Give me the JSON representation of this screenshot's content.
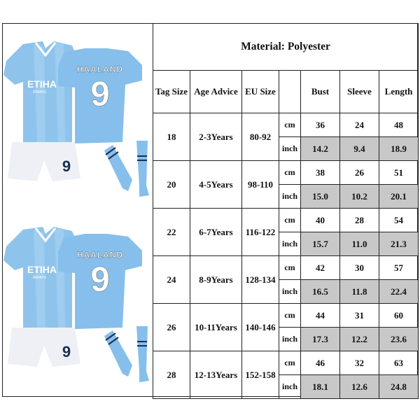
{
  "product": {
    "jersey_name": "HAALAND",
    "jersey_number": "9",
    "sponsor_main": "ETIHA",
    "sponsor_sub": "IRWAYS",
    "colors": {
      "jersey": "#8ec3ec",
      "jersey_dark": "#6aaee4",
      "shorts": "#eef0f6",
      "number_dark": "#1c2e52"
    }
  },
  "table": {
    "title": "Material: Polyester",
    "headers": [
      "Tag Size",
      "Age Advice",
      "EU Size",
      "",
      "Bust",
      "Sleeve",
      "Length"
    ],
    "units": [
      "cm",
      "inch"
    ],
    "highlight_color": "#c8c8c8",
    "rows": [
      {
        "tag": "18",
        "age": "2-3Years",
        "eu": "80-92",
        "cm": [
          "36",
          "24",
          "48"
        ],
        "inch": [
          "14.2",
          "9.4",
          "18.9"
        ]
      },
      {
        "tag": "20",
        "age": "4-5Years",
        "eu": "98-110",
        "cm": [
          "38",
          "26",
          "51"
        ],
        "inch": [
          "15.0",
          "10.2",
          "20.1"
        ]
      },
      {
        "tag": "22",
        "age": "6-7Years",
        "eu": "116-122",
        "cm": [
          "40",
          "28",
          "54"
        ],
        "inch": [
          "15.7",
          "11.0",
          "21.3"
        ]
      },
      {
        "tag": "24",
        "age": "8-9Years",
        "eu": "128-134",
        "cm": [
          "42",
          "30",
          "57"
        ],
        "inch": [
          "16.5",
          "11.8",
          "22.4"
        ]
      },
      {
        "tag": "26",
        "age": "10-11Years",
        "eu": "140-146",
        "cm": [
          "44",
          "31",
          "60"
        ],
        "inch": [
          "17.3",
          "12.2",
          "23.6"
        ]
      },
      {
        "tag": "28",
        "age": "12-13Years",
        "eu": "152-158",
        "cm": [
          "46",
          "32",
          "63"
        ],
        "inch": [
          "18.1",
          "12.6",
          "24.8"
        ]
      }
    ]
  }
}
